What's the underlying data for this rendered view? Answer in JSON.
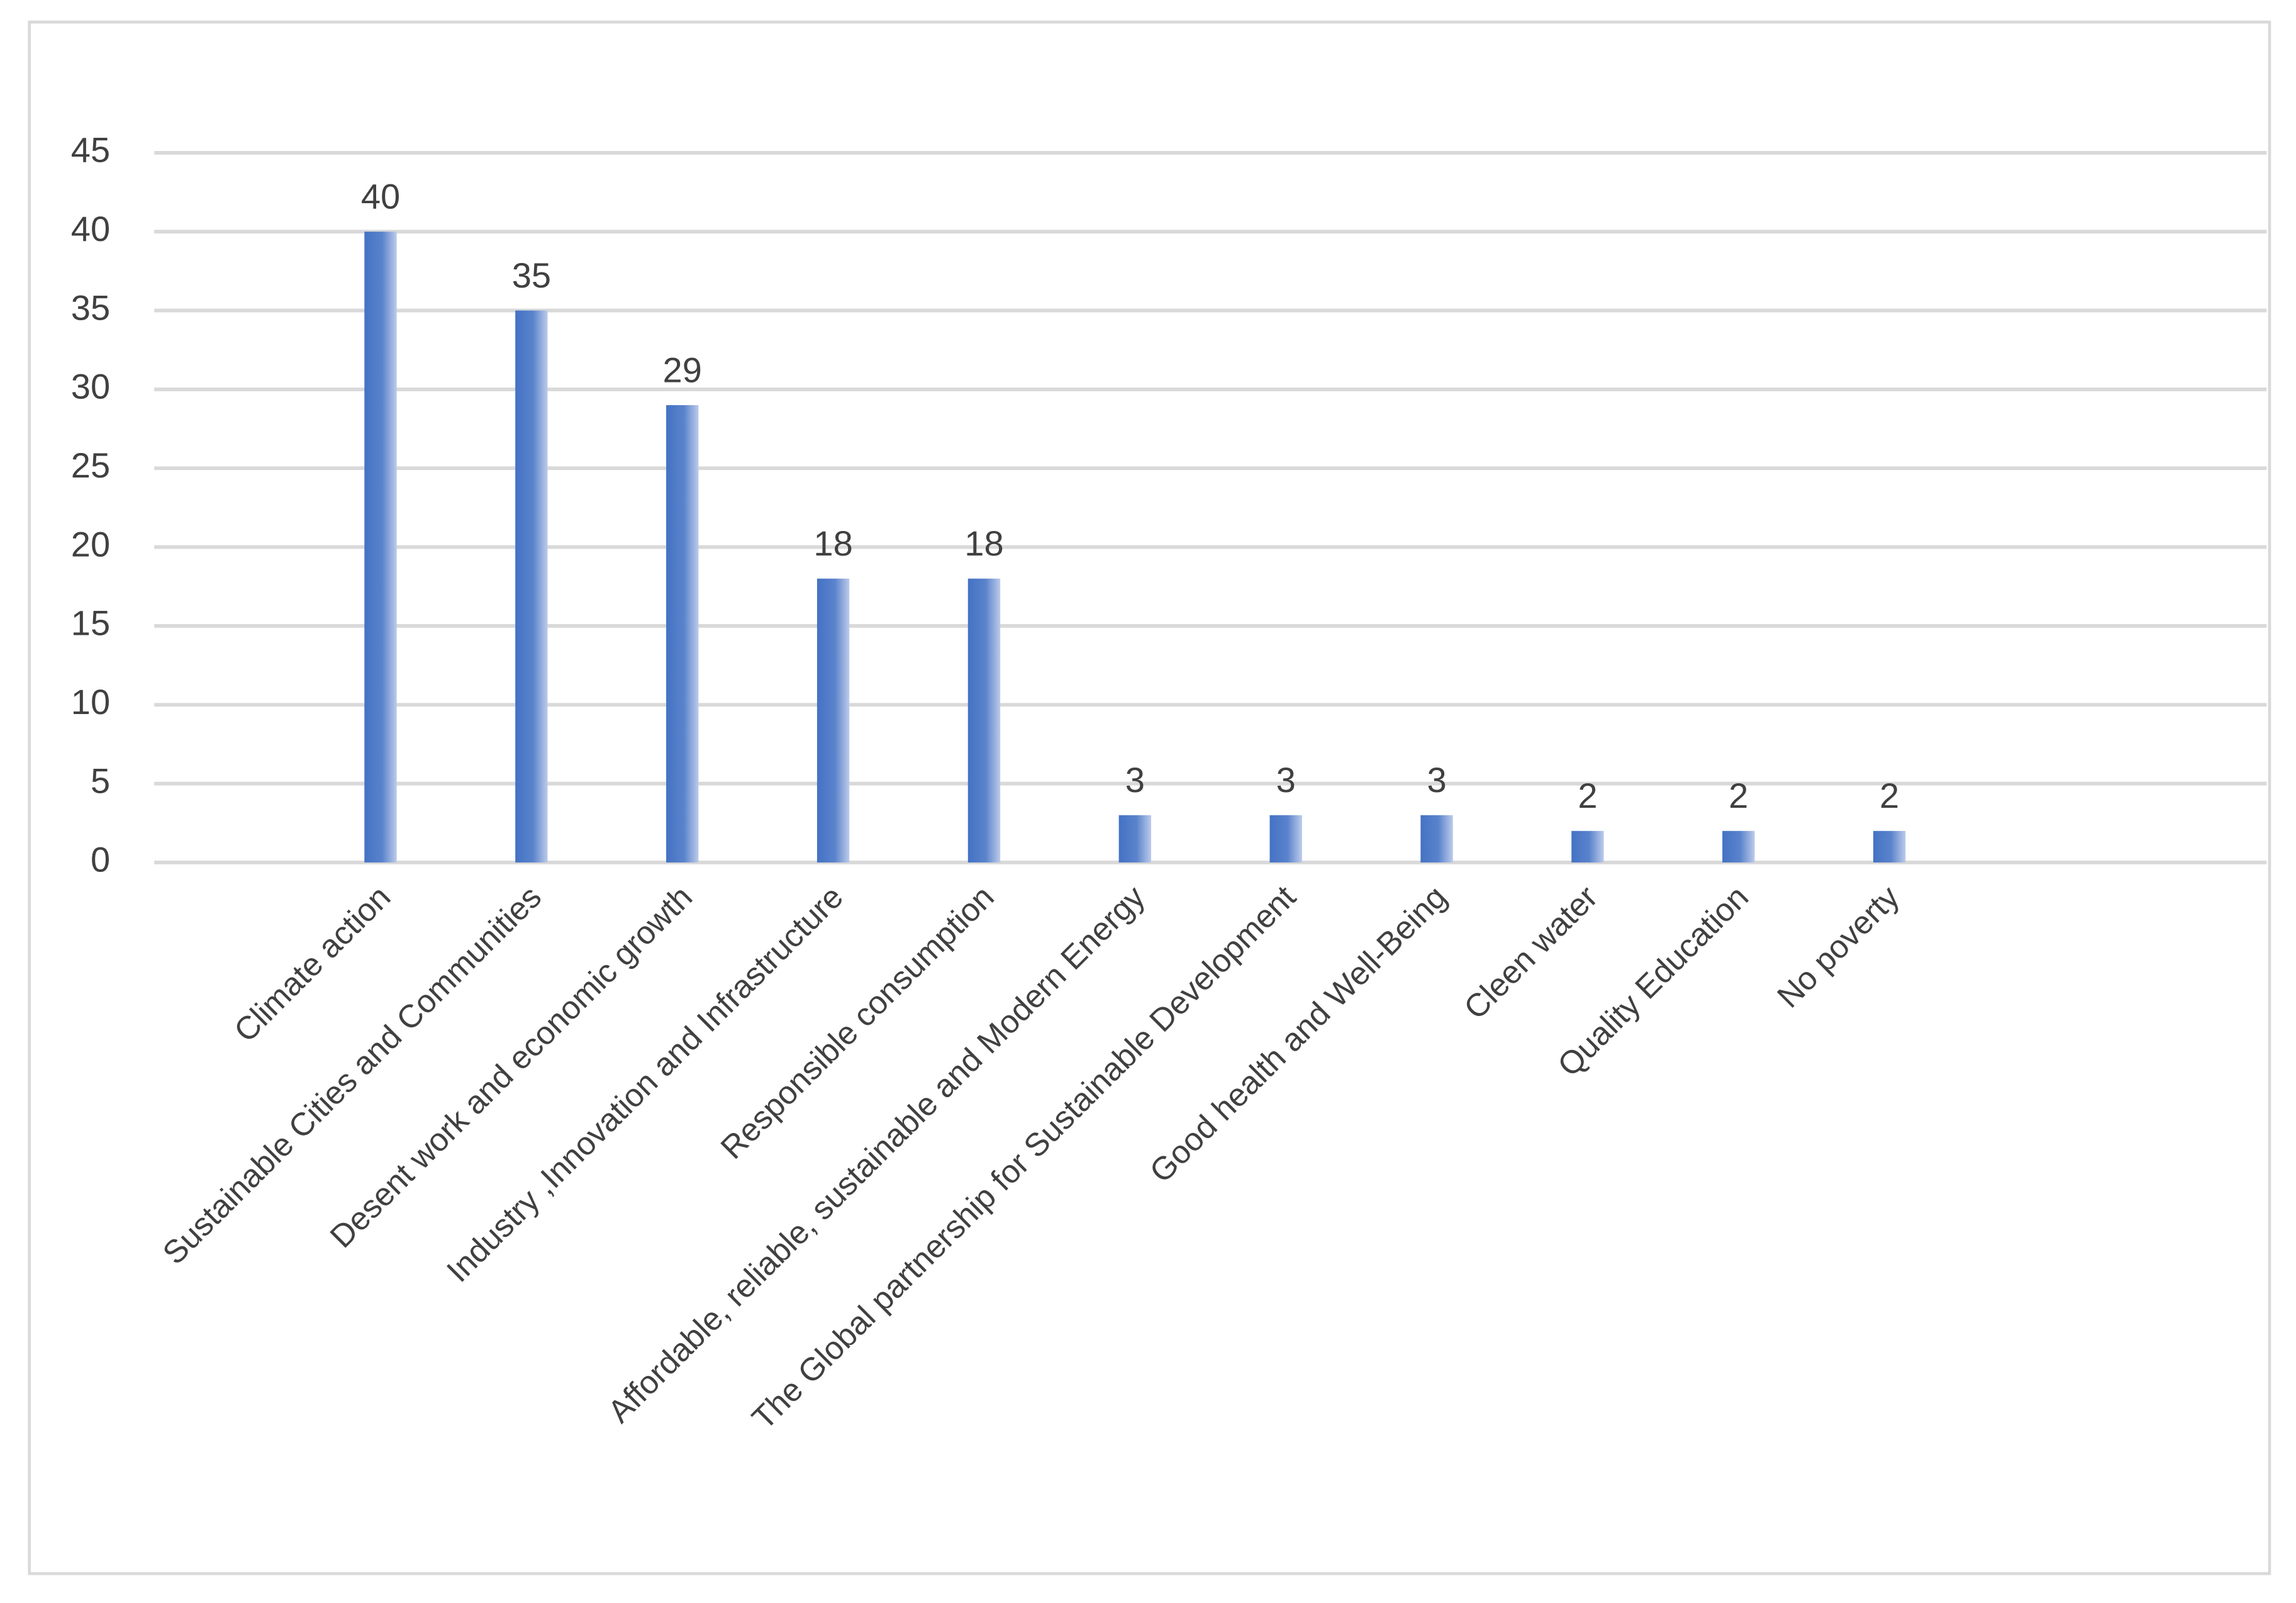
{
  "chart_data": {
    "type": "bar",
    "categories": [
      null,
      "Climate action",
      "Sustainable Cities and Communities",
      "Desent work and economic growth",
      "Industry ,Innovation and Infrastructure",
      "Responsible consumption",
      "Affordable, reliable, sustainable and Modern Energy",
      "The Global partnership for Sustainable Development",
      "Good health and Well-Being",
      "Cleen water",
      "Quality Education",
      "No poverty",
      null,
      null
    ],
    "values": [
      null,
      40,
      35,
      29,
      18,
      18,
      3,
      3,
      3,
      2,
      2,
      2,
      null,
      null
    ],
    "color": "#4472c4",
    "ylim": [
      0,
      45
    ],
    "yticks": [
      0,
      5,
      10,
      15,
      20,
      25,
      30,
      35,
      40,
      45
    ],
    "grid": true
  }
}
